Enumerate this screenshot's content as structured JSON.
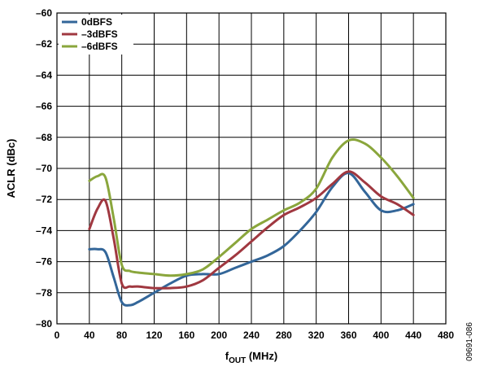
{
  "chart_data": {
    "type": "line",
    "xlabel_main": "f",
    "xlabel_sub": "OUT",
    "xlabel_unit": " (MHz)",
    "ylabel": "ACLR (dBc)",
    "xlim": [
      0,
      480
    ],
    "ylim": [
      -80,
      -60
    ],
    "xticks": [
      0,
      40,
      80,
      120,
      160,
      200,
      240,
      280,
      320,
      360,
      400,
      440,
      480
    ],
    "yticks": [
      -60,
      -62,
      -64,
      -66,
      -68,
      -70,
      -72,
      -74,
      -76,
      -78,
      -80
    ],
    "xtick_labels": [
      "0",
      "40",
      "80",
      "120",
      "160",
      "200",
      "240",
      "280",
      "320",
      "360",
      "400",
      "440",
      "480"
    ],
    "ytick_labels": [
      "–60",
      "–62",
      "–64",
      "–66",
      "–68",
      "–70",
      "–72",
      "–74",
      "–76",
      "–78",
      "–80"
    ],
    "grid": true,
    "legend_position": "top-left",
    "figure_code": "09691-086",
    "series": [
      {
        "name": "0dBFS",
        "color": "#336699",
        "x": [
          40,
          50,
          60,
          70,
          80,
          90,
          100,
          120,
          140,
          160,
          180,
          200,
          220,
          240,
          260,
          280,
          300,
          320,
          340,
          360,
          380,
          400,
          420,
          440
        ],
        "y": [
          -75.2,
          -75.2,
          -75.4,
          -77.0,
          -78.6,
          -78.8,
          -78.6,
          -78.0,
          -77.4,
          -76.9,
          -76.8,
          -76.8,
          -76.4,
          -76.0,
          -75.6,
          -75.0,
          -74.0,
          -72.8,
          -71.2,
          -70.3,
          -71.5,
          -72.7,
          -72.7,
          -72.3
        ]
      },
      {
        "name": "–3dBFS",
        "color": "#a03840",
        "x": [
          40,
          50,
          60,
          70,
          80,
          90,
          100,
          120,
          140,
          160,
          180,
          200,
          220,
          240,
          260,
          280,
          300,
          320,
          340,
          360,
          380,
          400,
          420,
          440
        ],
        "y": [
          -73.9,
          -72.6,
          -72.1,
          -74.5,
          -77.4,
          -77.6,
          -77.6,
          -77.7,
          -77.7,
          -77.6,
          -77.2,
          -76.4,
          -75.6,
          -74.7,
          -73.8,
          -73.0,
          -72.5,
          -71.9,
          -71.0,
          -70.2,
          -70.9,
          -71.8,
          -72.3,
          -73.0
        ]
      },
      {
        "name": "–6dBFS",
        "color": "#8aa63c",
        "x": [
          40,
          50,
          60,
          70,
          80,
          90,
          100,
          120,
          140,
          160,
          180,
          200,
          220,
          240,
          260,
          280,
          300,
          320,
          340,
          360,
          380,
          400,
          420,
          440
        ],
        "y": [
          -70.8,
          -70.5,
          -70.6,
          -73.2,
          -76.2,
          -76.6,
          -76.7,
          -76.8,
          -76.9,
          -76.8,
          -76.5,
          -75.7,
          -74.8,
          -73.9,
          -73.3,
          -72.7,
          -72.2,
          -71.3,
          -69.3,
          -68.2,
          -68.4,
          -69.3,
          -70.5,
          -71.9
        ]
      }
    ]
  }
}
